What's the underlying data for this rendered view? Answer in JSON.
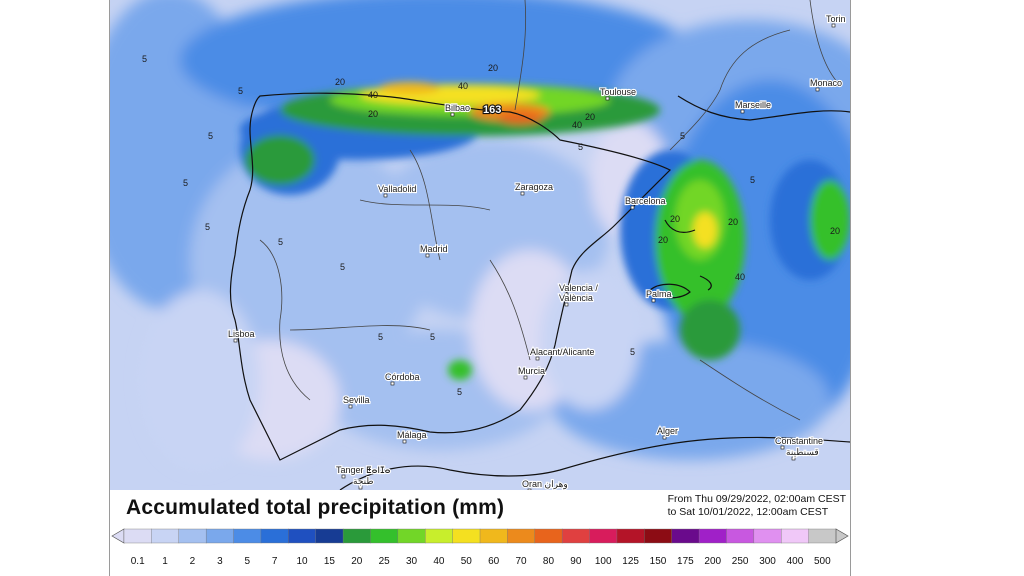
{
  "title": "Accumulated total precipitation (mm)",
  "period": {
    "from": "From Thu 09/29/2022, 02:00am CEST",
    "to": "to Sat 10/01/2022, 12:00am CEST"
  },
  "max_value": "163",
  "cities": [
    {
      "name": "Torin"
    },
    {
      "name": "Monaco"
    },
    {
      "name": "Marseille"
    },
    {
      "name": "Toulouse"
    },
    {
      "name": "Bilbao"
    },
    {
      "name": "Valladolid"
    },
    {
      "name": "Zaragoza"
    },
    {
      "name": "Barcelona"
    },
    {
      "name": "Madrid"
    },
    {
      "name": "Valencia /"
    },
    {
      "name": "València"
    },
    {
      "name": "Palma"
    },
    {
      "name": "Lisboa"
    },
    {
      "name": "Alacant/Alicante"
    },
    {
      "name": "Murcia"
    },
    {
      "name": "Córdoba"
    },
    {
      "name": "Sevilla"
    },
    {
      "name": "Málaga"
    },
    {
      "name": "Alger"
    },
    {
      "name": "Constantine"
    },
    {
      "name": "قسنطينة"
    },
    {
      "name": "Tanger ⵟⴰⵏⵊⴰ"
    },
    {
      "name": "طنجة"
    },
    {
      "name": "Oran وهران"
    }
  ],
  "contour_labels": [
    "5",
    "5",
    "5",
    "5",
    "5",
    "5",
    "5",
    "5",
    "5",
    "5",
    "5",
    "5",
    "5",
    "5",
    "5",
    "20",
    "20",
    "20",
    "20",
    "20",
    "20",
    "20",
    "40",
    "40",
    "40",
    "20",
    "40"
  ],
  "legend": {
    "values": [
      "0.1",
      "1",
      "2",
      "3",
      "5",
      "7",
      "10",
      "15",
      "20",
      "25",
      "30",
      "40",
      "50",
      "60",
      "70",
      "80",
      "90",
      "100",
      "125",
      "150",
      "175",
      "200",
      "250",
      "300",
      "400",
      "500"
    ],
    "colors": [
      "#dcdcf4",
      "#c8d4f4",
      "#a4c0f0",
      "#7aa8ec",
      "#4c8ce6",
      "#2a6fd8",
      "#1f50c0",
      "#173c94",
      "#2a9a3a",
      "#34c02c",
      "#72d628",
      "#c8ee2c",
      "#f4e020",
      "#f0b81c",
      "#ec8a1c",
      "#e8641c",
      "#e04040",
      "#d81c5c",
      "#b41428",
      "#8c0c14",
      "#6a0a8c",
      "#a020c8",
      "#c858e0",
      "#e090f0",
      "#f0c8f8",
      "#c8c8c8"
    ]
  }
}
